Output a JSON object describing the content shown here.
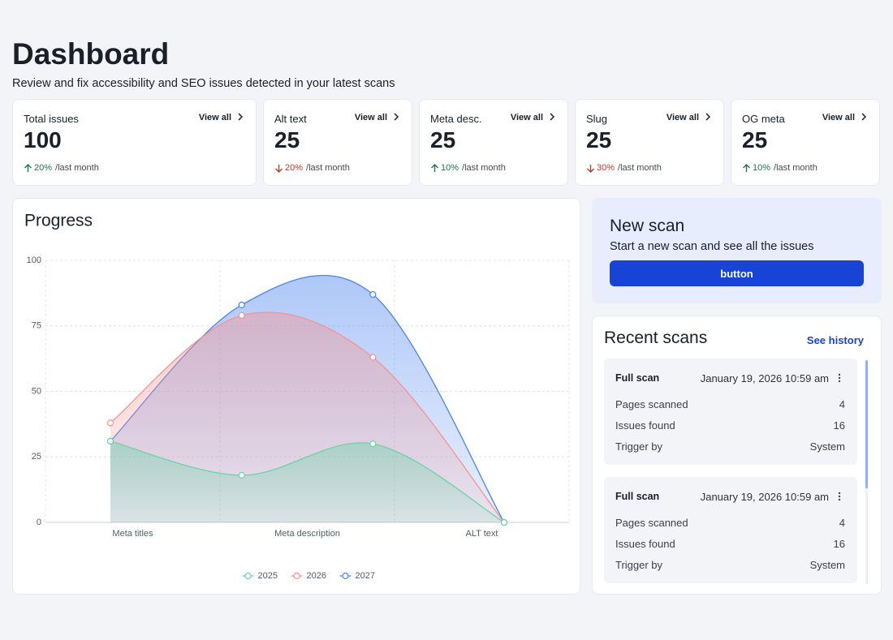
{
  "header": {
    "title": "Dashboard",
    "subtitle": "Review and fix accessibility and SEO issues detected in your latest scans"
  },
  "stats": [
    {
      "label": "Total issues",
      "link": "View all",
      "value": 100,
      "change": "20%",
      "direction": "up",
      "period": "/last month"
    },
    {
      "label": "Alt text",
      "link": "View all",
      "value": 25,
      "change": "20%",
      "direction": "down",
      "period": "/last month"
    },
    {
      "label": "Meta desc.",
      "link": "View all",
      "value": 25,
      "change": "10%",
      "direction": "up",
      "period": "/last month"
    },
    {
      "label": "Slug",
      "link": "View all",
      "value": 25,
      "change": "30%",
      "direction": "down",
      "period": "/last month"
    },
    {
      "label": "OG meta",
      "link": "View all",
      "value": 25,
      "change": "10%",
      "direction": "up",
      "period": "/last month"
    }
  ],
  "chart_data": {
    "type": "area",
    "title": "Progress",
    "xlabels": [
      "Meta titles",
      "Meta description",
      "ALT text"
    ],
    "series": [
      {
        "name": "2025",
        "color": "#6cd3a4",
        "values": [
          31,
          18,
          30,
          0
        ]
      },
      {
        "name": "2026",
        "color": "#f59390",
        "values": [
          38,
          79,
          63,
          0
        ]
      },
      {
        "name": "2027",
        "color": "#4d84f0",
        "values": [
          31,
          83,
          87,
          0
        ]
      }
    ],
    "ylim": [
      0,
      100
    ],
    "yticks": [
      0,
      25,
      50,
      75,
      100
    ],
    "grid": true,
    "legend": "bottom"
  },
  "new_scan": {
    "title": "New scan",
    "text": "Start a new scan and see all the issues",
    "button": "button"
  },
  "recent_scans": {
    "title": "Recent scans",
    "link": "See history",
    "items": [
      {
        "type": "Full scan",
        "date": "January 19, 2026 10:59 am",
        "rows": [
          [
            "Pages scanned",
            "4"
          ],
          [
            "Issues found",
            "16"
          ],
          [
            "Trigger by",
            "System"
          ]
        ]
      },
      {
        "type": "Full scan",
        "date": "January 19, 2026 10:59 am",
        "rows": [
          [
            "Pages scanned",
            "4"
          ],
          [
            "Issues found",
            "16"
          ],
          [
            "Trigger by",
            "System"
          ]
        ]
      }
    ]
  }
}
